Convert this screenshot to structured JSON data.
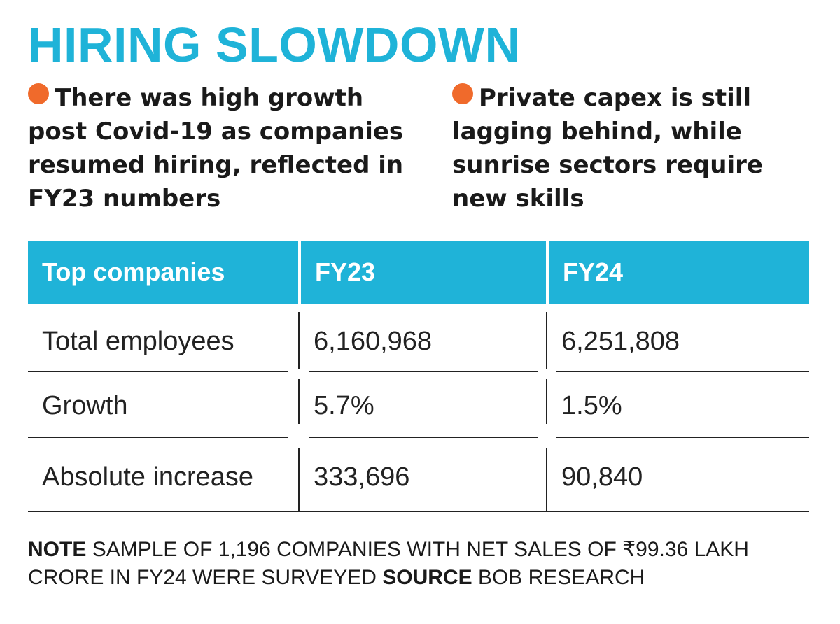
{
  "title": "HIRING SLOWDOWN",
  "colors": {
    "accent": "#1fb3d8",
    "bullet": "#f06a2b",
    "text": "#1a1a1a"
  },
  "bullets": [
    {
      "icon": "orange-dot-icon",
      "text": "There was high growth post Covid-19 as companies resumed hiring, reflected in FY23 numbers"
    },
    {
      "icon": "orange-dot-icon",
      "text": "Private capex is still lagging behind, while sunrise sectors require new skills"
    }
  ],
  "chart_data": {
    "type": "table",
    "columns": [
      "Top companies",
      "FY23",
      "FY24"
    ],
    "rows": [
      {
        "label": "Total employees",
        "values": [
          "6,160,968",
          "6,251,808"
        ]
      },
      {
        "label": "Growth",
        "values": [
          "5.7%",
          "1.5%"
        ]
      },
      {
        "label": "Absolute increase",
        "values": [
          "333,696",
          "90,840"
        ]
      }
    ]
  },
  "footer": {
    "note_label": "NOTE",
    "note_text": "SAMPLE OF 1,196 COMPANIES WITH NET SALES OF ₹99.36 LAKH CRORE IN FY24 WERE SURVEYED",
    "source_label": "SOURCE",
    "source_text": "BOB RESEARCH"
  }
}
